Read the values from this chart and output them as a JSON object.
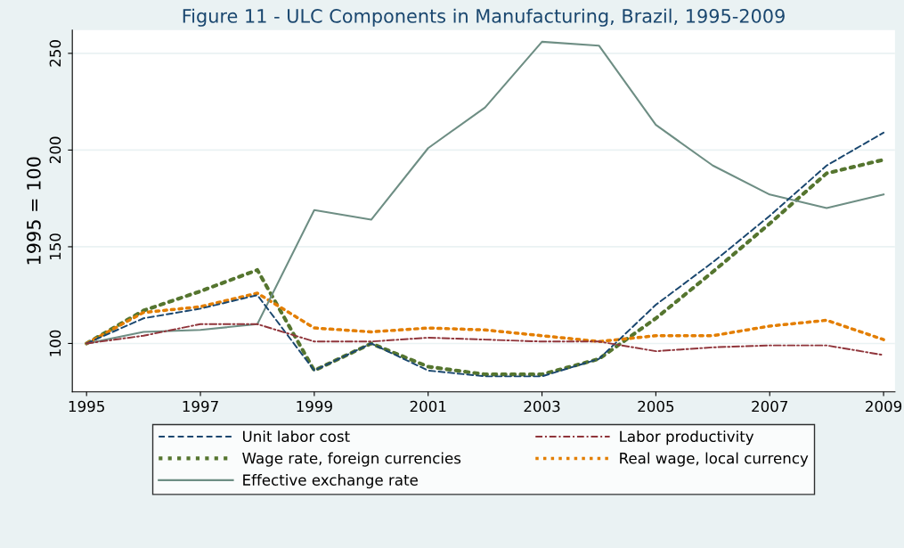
{
  "chart_data": {
    "type": "line",
    "title": "Figure 11 - ULC Components in Manufacturing, Brazil, 1995-2009",
    "ylabel": "1995 = 100",
    "x": [
      1995,
      1996,
      1997,
      1998,
      1999,
      2000,
      2001,
      2002,
      2003,
      2004,
      2005,
      2006,
      2007,
      2008,
      2009
    ],
    "xlim": [
      1994.75,
      2009.2
    ],
    "xticks": [
      1995,
      1997,
      1999,
      2001,
      2003,
      2005,
      2007,
      2009
    ],
    "ylim": [
      75,
      262
    ],
    "yticks": [
      100,
      150,
      200,
      250
    ],
    "grid": "y",
    "legend": "bottom",
    "marker": "none",
    "series": [
      {
        "name": "Unit labor cost",
        "color": "#1a476f",
        "line_style": "dashed",
        "values": [
          100,
          113,
          118,
          125,
          86,
          100,
          86,
          83,
          83,
          92,
          120,
          142,
          166,
          192,
          209
        ]
      },
      {
        "name": "Labor productivity",
        "color": "#90353b",
        "line_style": "dashdot",
        "values": [
          100,
          104,
          110,
          110,
          101,
          101,
          103,
          102,
          101,
          101,
          96,
          98,
          99,
          99,
          94
        ]
      },
      {
        "name": "Wage rate, foreign currencies",
        "color": "#55752f",
        "line_style": "dotted",
        "values": [
          100,
          117,
          127,
          138,
          86,
          100,
          88,
          84,
          84,
          92,
          113,
          137,
          162,
          188,
          195
        ]
      },
      {
        "name": "Real wage, local currency",
        "color": "#e37e00",
        "line_style": "dotted",
        "values": [
          100,
          116,
          119,
          126,
          108,
          106,
          108,
          107,
          104,
          101,
          104,
          104,
          109,
          112,
          102
        ]
      },
      {
        "name": "Effective exchange rate",
        "color": "#6e8e84",
        "line_style": "solid",
        "values": [
          100,
          106,
          107,
          110,
          169,
          164,
          201,
          222,
          256,
          254,
          213,
          192,
          177,
          170,
          177
        ]
      }
    ]
  }
}
